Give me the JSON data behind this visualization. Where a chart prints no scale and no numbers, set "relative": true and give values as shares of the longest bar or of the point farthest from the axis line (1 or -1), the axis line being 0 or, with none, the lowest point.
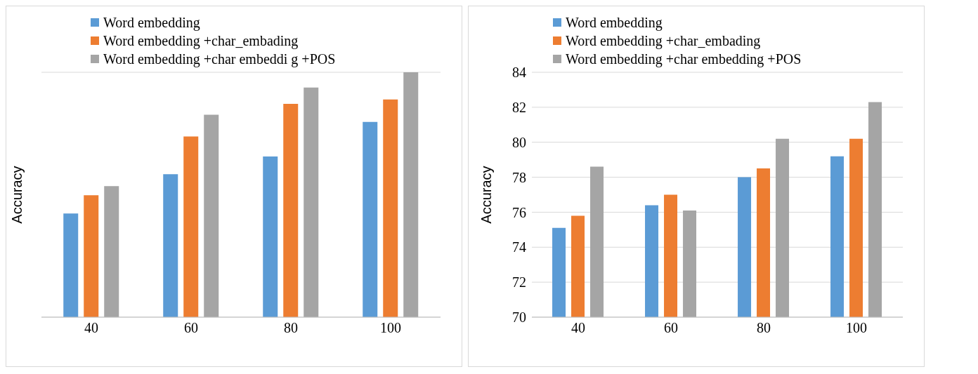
{
  "chart_data": [
    {
      "type": "bar",
      "ylabel": "Accuracy",
      "relative": true,
      "categories": [
        "40",
        "60",
        "80",
        "100"
      ],
      "grid": "y",
      "legend": "top left",
      "series": [
        {
          "name": "Word embedding",
          "color": "#5b9bd5",
          "values": [
            0.423,
            0.584,
            0.656,
            0.797
          ]
        },
        {
          "name": "Word embedding +char_embading",
          "color": "#ed7d31",
          "values": [
            0.498,
            0.738,
            0.871,
            0.889
          ]
        },
        {
          "name": "Word embedding +char embeddi g +POS",
          "color": "#a5a5a5",
          "values": [
            0.535,
            0.827,
            0.938,
            1
          ]
        }
      ]
    },
    {
      "type": "bar",
      "ylabel": "Accuracy",
      "categories": [
        "40",
        "60",
        "80",
        "100"
      ],
      "ylim": [
        70,
        84
      ],
      "yticks": [
        70,
        72,
        74,
        76,
        78,
        80,
        82,
        84
      ],
      "grid": "y",
      "legend": "top left",
      "series": [
        {
          "name": "Word embedding",
          "color": "#5b9bd5",
          "values": [
            75.1,
            76.4,
            78.0,
            79.2
          ]
        },
        {
          "name": "Word embedding +char_embading",
          "color": "#ed7d31",
          "values": [
            75.8,
            77.0,
            78.5,
            80.2
          ]
        },
        {
          "name": "Word embedding +char embedding +POS",
          "color": "#a5a5a5",
          "values": [
            78.6,
            76.1,
            80.2,
            82.3
          ]
        }
      ]
    }
  ]
}
